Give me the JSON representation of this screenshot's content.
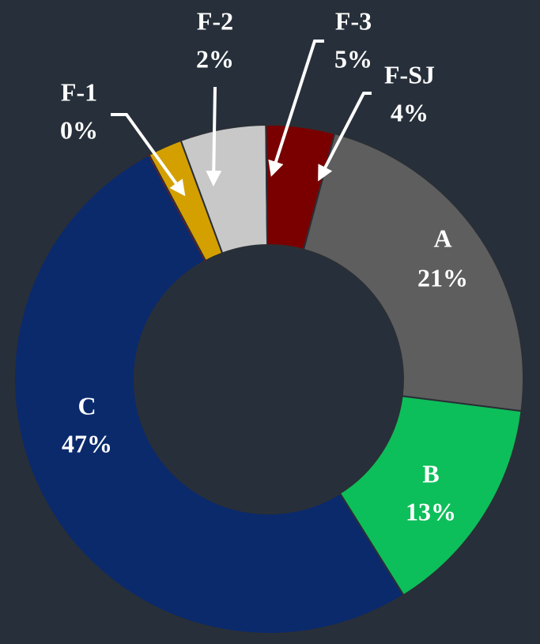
{
  "chart_data": {
    "type": "donut",
    "categories": [
      "A",
      "B",
      "C",
      "F-1",
      "F-2",
      "F-3",
      "F-SJ"
    ],
    "values": [
      21,
      13,
      47,
      0,
      2,
      5,
      4
    ],
    "value_labels": [
      "21%",
      "13%",
      "47%",
      "0%",
      "2%",
      "5%",
      "4%"
    ],
    "colors": [
      "#5e5e5e",
      "#0dbf5a",
      "#0b2a6c",
      "#c00000",
      "#d4a000",
      "#c8c8c8",
      "#7a0000"
    ]
  }
}
